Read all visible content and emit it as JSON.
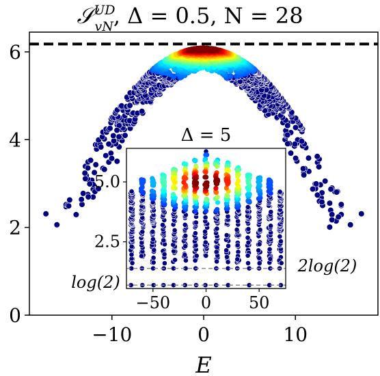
{
  "chart_data": [
    {
      "id": "main",
      "type": "scatter",
      "title_parts": {
        "S": "𝒮",
        "sup": "UD",
        "sub": "vN",
        "rest": ", Δ = 0.5, N = 28"
      },
      "xlabel": "E",
      "ylabel": "",
      "xlim": [
        -19,
        19
      ],
      "ylim": [
        0,
        6.45
      ],
      "xticks": [
        -10,
        0,
        10
      ],
      "xtick_labels": [
        "−10",
        "0",
        "10"
      ],
      "yticks": [
        0,
        2,
        4,
        6
      ],
      "ytick_labels": [
        "0",
        "2",
        "4",
        "6"
      ],
      "reference_line": {
        "y": 6.18,
        "style": "dashed",
        "color": "#000000"
      },
      "colormap": "jet (density)",
      "envelope": [
        {
          "x": -17,
          "y": 2.3
        },
        {
          "x": -16,
          "y": 2.06
        },
        {
          "x": -15,
          "y": 2.85
        },
        {
          "x": -12,
          "y": 3.7
        },
        {
          "x": -10,
          "y": 4.3
        },
        {
          "x": -8,
          "y": 4.95
        },
        {
          "x": -5,
          "y": 5.55
        },
        {
          "x": -2,
          "y": 5.95
        },
        {
          "x": 0,
          "y": 6.05
        },
        {
          "x": 2,
          "y": 5.95
        },
        {
          "x": 5,
          "y": 5.55
        },
        {
          "x": 8,
          "y": 4.95
        },
        {
          "x": 10,
          "y": 4.3
        },
        {
          "x": 12,
          "y": 3.7
        },
        {
          "x": 15,
          "y": 2.85
        },
        {
          "x": 16,
          "y": 2.06
        },
        {
          "x": 17,
          "y": 2.3
        }
      ],
      "outliers": [
        {
          "x": -17.2,
          "y": 2.31
        },
        {
          "x": -16.0,
          "y": 2.06
        },
        {
          "x": 16.0,
          "y": 2.06
        },
        {
          "x": 17.2,
          "y": 2.31
        }
      ]
    },
    {
      "id": "inset",
      "type": "scatter",
      "title": "Δ = 5",
      "xlim": [
        -75,
        75
      ],
      "ylim": [
        0.55,
        6.4
      ],
      "xticks": [
        -50,
        0,
        50
      ],
      "xtick_labels": [
        "−50",
        "0",
        "50"
      ],
      "yticks": [
        2.5,
        5.0
      ],
      "ytick_labels": [
        "2.5",
        "5.0"
      ],
      "column_x": [
        -70,
        -60,
        -50,
        -40,
        -30,
        -20,
        -10,
        0,
        10,
        20,
        30,
        40,
        50,
        60,
        70
      ],
      "column_max": [
        4.6,
        5.1,
        5.2,
        5.3,
        5.6,
        5.8,
        6.0,
        6.3,
        6.0,
        5.8,
        5.6,
        5.3,
        5.2,
        5.1,
        4.6
      ],
      "reference_lines": [
        {
          "y": 1.39,
          "label": "2log(2)",
          "style": "dashed",
          "color": "#888888"
        },
        {
          "y": 0.69,
          "label": "log(2)",
          "style": "dashed",
          "color": "#888888"
        }
      ]
    }
  ]
}
